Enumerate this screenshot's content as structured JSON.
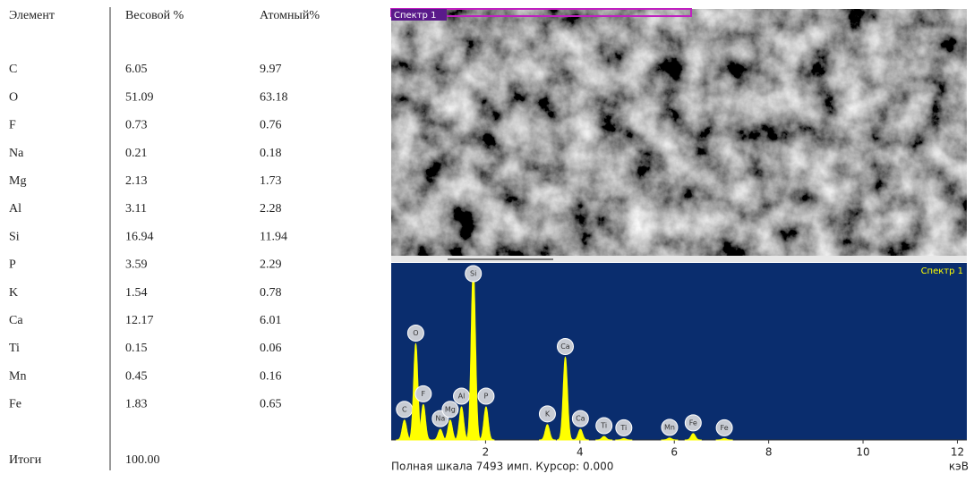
{
  "table": {
    "header": [
      "Элемент",
      "Весовой %",
      "Атомный%"
    ],
    "rows": [
      [
        "C",
        "6.05",
        "9.97"
      ],
      [
        "O",
        "51.09",
        "63.18"
      ],
      [
        "F",
        "0.73",
        "0.76"
      ],
      [
        "Na",
        "0.21",
        "0.18"
      ],
      [
        "Mg",
        "2.13",
        "1.73"
      ],
      [
        "Al",
        "3.11",
        "2.28"
      ],
      [
        "Si",
        "16.94",
        "11.94"
      ],
      [
        "P",
        "3.59",
        "2.29"
      ],
      [
        "K",
        "1.54",
        "0.78"
      ],
      [
        "Ca",
        "12.17",
        "6.01"
      ],
      [
        "Ti",
        "0.15",
        "0.06"
      ],
      [
        "Mn",
        "0.45",
        "0.16"
      ],
      [
        "Fe",
        "1.83",
        "0.65"
      ]
    ],
    "total": [
      "Итоги",
      "100.00"
    ]
  },
  "image": {
    "label": "Спектр 1"
  },
  "chart_data": {
    "type": "spectrum",
    "title": "Спектр 1",
    "caption": "Полная шкала 7493 имп. Курсор: 0.000",
    "x_unit": "кэВ",
    "color": "#ffff00",
    "background": "#0a2d6e",
    "xlim": [
      0,
      12.2
    ],
    "xticks": [
      2,
      4,
      6,
      8,
      10,
      12
    ],
    "ylim": [
      0,
      7493
    ],
    "peaks": {
      "labels": [
        "C",
        "O",
        "F",
        "Na",
        "Mg",
        "Al",
        "Si",
        "P",
        "K",
        "Ca",
        "Ca",
        "Ti",
        "Ti",
        "Mn",
        "Fe",
        "Fe"
      ],
      "x": [
        0.28,
        0.52,
        0.68,
        1.04,
        1.25,
        1.49,
        1.74,
        2.01,
        3.31,
        3.69,
        4.01,
        4.51,
        4.93,
        5.9,
        6.4,
        7.06
      ],
      "values": [
        840,
        4070,
        1500,
        450,
        840,
        1400,
        7300,
        1400,
        650,
        3500,
        450,
        150,
        60,
        80,
        270,
        60
      ]
    }
  }
}
